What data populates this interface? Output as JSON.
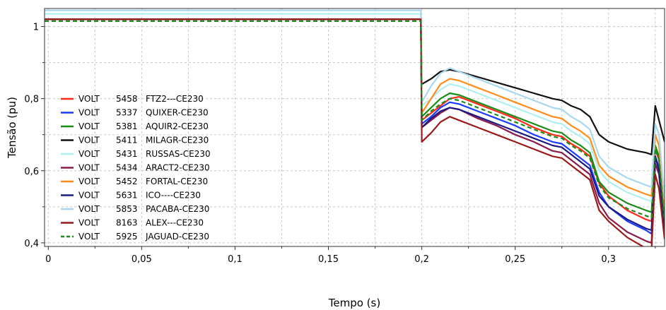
{
  "chart_data": {
    "type": "line",
    "title": "",
    "xlabel": "Tempo (s)",
    "ylabel": "Tensão (pu)",
    "xlim": [
      -0.002,
      0.33
    ],
    "ylim": [
      0.39,
      1.05
    ],
    "grid": true,
    "legend_position": "left",
    "x_ticks": [
      {
        "value": 0,
        "label": "0"
      },
      {
        "value": 0.05,
        "label": "0,05"
      },
      {
        "value": 0.1,
        "label": "0,1"
      },
      {
        "value": 0.15,
        "label": "0,15"
      },
      {
        "value": 0.2,
        "label": "0,2"
      },
      {
        "value": 0.25,
        "label": "0,25"
      },
      {
        "value": 0.3,
        "label": "0,3"
      }
    ],
    "y_ticks": [
      {
        "value": 0.4,
        "label": "0,4"
      },
      {
        "value": 0.6,
        "label": "0,6"
      },
      {
        "value": 0.8,
        "label": "0,8"
      },
      {
        "value": 1.0,
        "label": "1"
      }
    ],
    "series": [
      {
        "type_label": "VOLT",
        "bus": "5458",
        "name": "FTZ2---CE230",
        "color": "#ff2a1a",
        "dash": false,
        "x": [
          -0.002,
          0.1995,
          0.1995,
          0.2,
          0.205,
          0.21,
          0.215,
          0.22,
          0.23,
          0.24,
          0.25,
          0.26,
          0.27,
          0.275,
          0.28,
          0.285,
          0.29,
          0.295,
          0.3,
          0.31,
          0.32,
          0.323,
          0.325,
          0.327,
          0.33
        ],
        "y": [
          1.02,
          1.02,
          1.02,
          0.74,
          0.76,
          0.78,
          0.8,
          0.805,
          0.785,
          0.765,
          0.745,
          0.72,
          0.7,
          0.695,
          0.675,
          0.66,
          0.64,
          0.565,
          0.53,
          0.49,
          0.465,
          0.46,
          0.66,
          0.63,
          0.44
        ]
      },
      {
        "type_label": "VOLT",
        "bus": "5337",
        "name": "QUIXER-CE230",
        "color": "#1a3cff",
        "dash": false,
        "x": [
          -0.002,
          0.1995,
          0.1995,
          0.2,
          0.205,
          0.21,
          0.215,
          0.22,
          0.23,
          0.24,
          0.25,
          0.26,
          0.27,
          0.275,
          0.28,
          0.285,
          0.29,
          0.295,
          0.3,
          0.31,
          0.32,
          0.323,
          0.325,
          0.327,
          0.33
        ],
        "y": [
          1.02,
          1.02,
          1.02,
          0.73,
          0.75,
          0.775,
          0.79,
          0.785,
          0.765,
          0.745,
          0.725,
          0.7,
          0.68,
          0.675,
          0.655,
          0.635,
          0.615,
          0.54,
          0.5,
          0.46,
          0.435,
          0.425,
          0.64,
          0.61,
          0.43
        ]
      },
      {
        "type_label": "VOLT",
        "bus": "5381",
        "name": "AQUIR2-CE230",
        "color": "#1a8c1a",
        "dash": false,
        "x": [
          -0.002,
          0.1995,
          0.1995,
          0.2,
          0.205,
          0.21,
          0.215,
          0.22,
          0.23,
          0.24,
          0.25,
          0.26,
          0.27,
          0.275,
          0.28,
          0.285,
          0.29,
          0.295,
          0.3,
          0.31,
          0.32,
          0.323,
          0.325,
          0.327,
          0.33
        ],
        "y": [
          1.02,
          1.02,
          1.02,
          0.75,
          0.775,
          0.8,
          0.815,
          0.81,
          0.79,
          0.77,
          0.75,
          0.73,
          0.71,
          0.705,
          0.685,
          0.67,
          0.65,
          0.57,
          0.54,
          0.51,
          0.49,
          0.485,
          0.67,
          0.64,
          0.47
        ]
      },
      {
        "type_label": "VOLT",
        "bus": "5411",
        "name": "MILAGR-CE230",
        "color": "#111111",
        "dash": false,
        "x": [
          -0.002,
          0.1995,
          0.1995,
          0.2,
          0.205,
          0.21,
          0.215,
          0.22,
          0.23,
          0.24,
          0.25,
          0.26,
          0.27,
          0.275,
          0.28,
          0.285,
          0.29,
          0.295,
          0.3,
          0.31,
          0.32,
          0.323,
          0.325,
          0.327,
          0.33
        ],
        "y": [
          1.02,
          1.02,
          1.02,
          0.84,
          0.855,
          0.875,
          0.88,
          0.875,
          0.86,
          0.845,
          0.83,
          0.815,
          0.8,
          0.795,
          0.78,
          0.77,
          0.75,
          0.7,
          0.68,
          0.66,
          0.65,
          0.645,
          0.78,
          0.74,
          0.68
        ]
      },
      {
        "type_label": "VOLT",
        "bus": "5431",
        "name": "RUSSAS-CE230",
        "color": "#aef0f0",
        "dash": false,
        "x": [
          -0.002,
          0.1995,
          0.1995,
          0.2,
          0.205,
          0.21,
          0.215,
          0.22,
          0.23,
          0.24,
          0.25,
          0.26,
          0.27,
          0.275,
          0.28,
          0.285,
          0.29,
          0.295,
          0.3,
          0.31,
          0.32,
          0.323,
          0.325,
          0.327,
          0.33
        ],
        "y": [
          1.035,
          1.035,
          1.035,
          0.78,
          0.8,
          0.825,
          0.84,
          0.835,
          0.815,
          0.795,
          0.775,
          0.755,
          0.735,
          0.73,
          0.71,
          0.695,
          0.675,
          0.6,
          0.57,
          0.54,
          0.52,
          0.515,
          0.7,
          0.67,
          0.5
        ]
      },
      {
        "type_label": "VOLT",
        "bus": "5434",
        "name": "ARACT2-CE230",
        "color": "#8a1a4a",
        "dash": false,
        "x": [
          -0.002,
          0.1995,
          0.1995,
          0.2,
          0.205,
          0.21,
          0.215,
          0.22,
          0.23,
          0.24,
          0.25,
          0.26,
          0.27,
          0.275,
          0.28,
          0.285,
          0.29,
          0.295,
          0.3,
          0.31,
          0.32,
          0.323,
          0.325,
          0.327,
          0.33
        ],
        "y": [
          1.02,
          1.02,
          1.02,
          0.72,
          0.74,
          0.76,
          0.775,
          0.77,
          0.745,
          0.725,
          0.7,
          0.68,
          0.655,
          0.65,
          0.63,
          0.61,
          0.59,
          0.51,
          0.47,
          0.43,
          0.405,
          0.4,
          0.62,
          0.59,
          0.42
        ]
      },
      {
        "type_label": "VOLT",
        "bus": "5452",
        "name": "FORTAL-CE230",
        "color": "#ff8c1a",
        "dash": false,
        "x": [
          -0.002,
          0.1995,
          0.1995,
          0.2,
          0.205,
          0.21,
          0.215,
          0.22,
          0.23,
          0.24,
          0.25,
          0.26,
          0.27,
          0.275,
          0.28,
          0.285,
          0.29,
          0.295,
          0.3,
          0.31,
          0.32,
          0.323,
          0.325,
          0.327,
          0.33
        ],
        "y": [
          1.02,
          1.02,
          1.02,
          0.76,
          0.8,
          0.84,
          0.855,
          0.85,
          0.83,
          0.81,
          0.79,
          0.77,
          0.75,
          0.745,
          0.725,
          0.71,
          0.69,
          0.615,
          0.585,
          0.555,
          0.535,
          0.53,
          0.7,
          0.67,
          0.5
        ]
      },
      {
        "type_label": "VOLT",
        "bus": "5631",
        "name": "ICO----CE230",
        "color": "#1a1a80",
        "dash": false,
        "x": [
          -0.002,
          0.1995,
          0.1995,
          0.2,
          0.205,
          0.21,
          0.215,
          0.22,
          0.23,
          0.24,
          0.25,
          0.26,
          0.27,
          0.275,
          0.28,
          0.285,
          0.29,
          0.295,
          0.3,
          0.31,
          0.32,
          0.323,
          0.325,
          0.327,
          0.33
        ],
        "y": [
          1.02,
          1.02,
          1.02,
          0.72,
          0.745,
          0.765,
          0.775,
          0.77,
          0.75,
          0.73,
          0.71,
          0.69,
          0.67,
          0.665,
          0.645,
          0.625,
          0.605,
          0.53,
          0.5,
          0.465,
          0.44,
          0.435,
          0.64,
          0.6,
          0.43
        ]
      },
      {
        "type_label": "VOLT",
        "bus": "5853",
        "name": "PACABA-CE230",
        "color": "#a8d8f0",
        "dash": false,
        "x": [
          -0.002,
          0.1995,
          0.1995,
          0.2,
          0.205,
          0.21,
          0.215,
          0.22,
          0.23,
          0.24,
          0.25,
          0.26,
          0.27,
          0.275,
          0.28,
          0.285,
          0.29,
          0.295,
          0.3,
          0.31,
          0.32,
          0.323,
          0.325,
          0.327,
          0.33
        ],
        "y": [
          1.045,
          1.045,
          1.045,
          0.79,
          0.835,
          0.87,
          0.885,
          0.875,
          0.855,
          0.835,
          0.815,
          0.795,
          0.775,
          0.77,
          0.75,
          0.735,
          0.715,
          0.64,
          0.61,
          0.58,
          0.56,
          0.555,
          0.73,
          0.7,
          0.52
        ]
      },
      {
        "type_label": "VOLT",
        "bus": "8163",
        "name": "ALEX---CE230",
        "color": "#9a1a1a",
        "dash": false,
        "x": [
          -0.002,
          0.1995,
          0.1995,
          0.2,
          0.205,
          0.21,
          0.215,
          0.22,
          0.23,
          0.24,
          0.25,
          0.26,
          0.27,
          0.275,
          0.28,
          0.285,
          0.29,
          0.295,
          0.3,
          0.31,
          0.32,
          0.323,
          0.325,
          0.327,
          0.33
        ],
        "y": [
          1.02,
          1.02,
          1.02,
          0.68,
          0.705,
          0.735,
          0.75,
          0.74,
          0.72,
          0.7,
          0.68,
          0.66,
          0.64,
          0.635,
          0.615,
          0.595,
          0.575,
          0.49,
          0.46,
          0.415,
          0.385,
          0.38,
          0.59,
          0.55,
          0.41
        ]
      },
      {
        "type_label": "VOLT",
        "bus": "5925",
        "name": "JAGUAD-CE230",
        "color": "#1a8c1a",
        "dash": true,
        "x": [
          -0.002,
          0.1995,
          0.1995,
          0.2,
          0.205,
          0.21,
          0.215,
          0.22,
          0.23,
          0.24,
          0.25,
          0.26,
          0.27,
          0.275,
          0.28,
          0.285,
          0.29,
          0.295,
          0.3,
          0.31,
          0.32,
          0.323,
          0.325,
          0.327,
          0.33
        ],
        "y": [
          1.015,
          1.015,
          1.015,
          0.74,
          0.765,
          0.785,
          0.8,
          0.795,
          0.775,
          0.755,
          0.735,
          0.715,
          0.695,
          0.69,
          0.67,
          0.655,
          0.635,
          0.56,
          0.525,
          0.495,
          0.475,
          0.47,
          0.66,
          0.63,
          0.46
        ]
      }
    ]
  }
}
